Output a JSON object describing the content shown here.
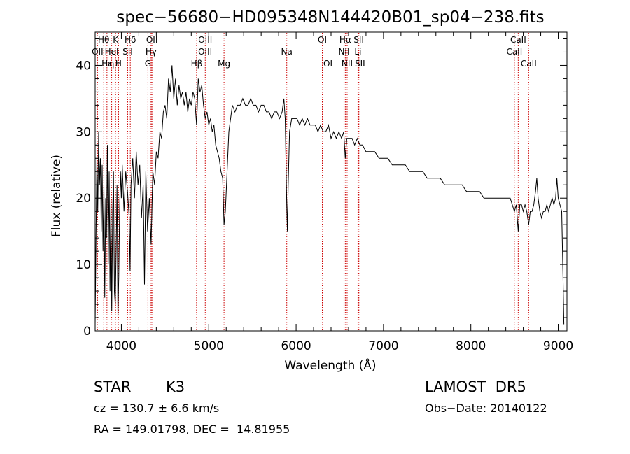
{
  "chart_data": {
    "type": "line",
    "title": "spec−56680−HD095348N144420B01_sp04−238.fits",
    "xlabel": "Wavelength (Å)",
    "ylabel": "Flux (relative)",
    "xlim": [
      3700,
      9100
    ],
    "ylim": [
      0,
      45
    ],
    "xticks": [
      4000,
      5000,
      6000,
      7000,
      8000,
      9000
    ],
    "yticks": [
      0,
      10,
      20,
      30,
      40
    ],
    "grid": false,
    "series": [
      {
        "points": [
          [
            3700,
            1
          ],
          [
            3710,
            14
          ],
          [
            3720,
            26
          ],
          [
            3730,
            18
          ],
          [
            3740,
            30
          ],
          [
            3750,
            22
          ],
          [
            3760,
            26
          ],
          [
            3770,
            15
          ],
          [
            3780,
            25
          ],
          [
            3790,
            12
          ],
          [
            3800,
            22
          ],
          [
            3810,
            5
          ],
          [
            3820,
            20
          ],
          [
            3830,
            14
          ],
          [
            3840,
            28
          ],
          [
            3850,
            10
          ],
          [
            3860,
            24
          ],
          [
            3870,
            6
          ],
          [
            3880,
            20
          ],
          [
            3890,
            3
          ],
          [
            3900,
            18
          ],
          [
            3910,
            24
          ],
          [
            3920,
            6
          ],
          [
            3930,
            4
          ],
          [
            3940,
            12
          ],
          [
            3950,
            22
          ],
          [
            3960,
            2
          ],
          [
            3970,
            8
          ],
          [
            3980,
            18
          ],
          [
            3990,
            24
          ],
          [
            4000,
            20
          ],
          [
            4010,
            25
          ],
          [
            4030,
            18
          ],
          [
            4050,
            24
          ],
          [
            4070,
            21
          ],
          [
            4090,
            17
          ],
          [
            4100,
            9
          ],
          [
            4110,
            22
          ],
          [
            4130,
            26
          ],
          [
            4150,
            20
          ],
          [
            4170,
            27
          ],
          [
            4190,
            22
          ],
          [
            4210,
            25
          ],
          [
            4230,
            17
          ],
          [
            4250,
            22
          ],
          [
            4265,
            7
          ],
          [
            4280,
            24
          ],
          [
            4300,
            15
          ],
          [
            4320,
            20
          ],
          [
            4340,
            13
          ],
          [
            4360,
            24
          ],
          [
            4380,
            22
          ],
          [
            4400,
            27
          ],
          [
            4420,
            26
          ],
          [
            4440,
            30
          ],
          [
            4460,
            29
          ],
          [
            4480,
            33
          ],
          [
            4500,
            34
          ],
          [
            4520,
            32
          ],
          [
            4540,
            38
          ],
          [
            4560,
            36
          ],
          [
            4580,
            40
          ],
          [
            4600,
            35
          ],
          [
            4620,
            38
          ],
          [
            4640,
            34
          ],
          [
            4660,
            37
          ],
          [
            4680,
            35
          ],
          [
            4700,
            36
          ],
          [
            4720,
            34
          ],
          [
            4740,
            36
          ],
          [
            4760,
            33
          ],
          [
            4780,
            35
          ],
          [
            4800,
            34
          ],
          [
            4820,
            36
          ],
          [
            4840,
            35
          ],
          [
            4861,
            31
          ],
          [
            4880,
            38
          ],
          [
            4900,
            36
          ],
          [
            4920,
            37
          ],
          [
            4940,
            34
          ],
          [
            4960,
            32
          ],
          [
            4980,
            33
          ],
          [
            5000,
            31
          ],
          [
            5020,
            32
          ],
          [
            5040,
            30
          ],
          [
            5060,
            31
          ],
          [
            5080,
            28
          ],
          [
            5100,
            27
          ],
          [
            5120,
            26
          ],
          [
            5140,
            24
          ],
          [
            5160,
            23
          ],
          [
            5175,
            16
          ],
          [
            5190,
            18
          ],
          [
            5210,
            24
          ],
          [
            5230,
            30
          ],
          [
            5250,
            32
          ],
          [
            5270,
            34
          ],
          [
            5300,
            33
          ],
          [
            5330,
            34
          ],
          [
            5360,
            34
          ],
          [
            5390,
            35
          ],
          [
            5420,
            34
          ],
          [
            5450,
            34
          ],
          [
            5480,
            35
          ],
          [
            5510,
            34
          ],
          [
            5540,
            34
          ],
          [
            5570,
            33
          ],
          [
            5600,
            34
          ],
          [
            5630,
            34
          ],
          [
            5660,
            33
          ],
          [
            5690,
            33
          ],
          [
            5720,
            32
          ],
          [
            5750,
            33
          ],
          [
            5780,
            33
          ],
          [
            5810,
            32
          ],
          [
            5840,
            33
          ],
          [
            5860,
            35
          ],
          [
            5875,
            32
          ],
          [
            5893,
            19
          ],
          [
            5900,
            15
          ],
          [
            5910,
            22
          ],
          [
            5925,
            30
          ],
          [
            5950,
            32
          ],
          [
            5980,
            32
          ],
          [
            6010,
            32
          ],
          [
            6040,
            31
          ],
          [
            6070,
            32
          ],
          [
            6100,
            31
          ],
          [
            6130,
            32
          ],
          [
            6160,
            31
          ],
          [
            6190,
            31
          ],
          [
            6220,
            31
          ],
          [
            6250,
            30
          ],
          [
            6280,
            31
          ],
          [
            6310,
            30
          ],
          [
            6340,
            30
          ],
          [
            6370,
            31
          ],
          [
            6400,
            29
          ],
          [
            6430,
            30
          ],
          [
            6460,
            29
          ],
          [
            6490,
            30
          ],
          [
            6520,
            29
          ],
          [
            6545,
            30
          ],
          [
            6563,
            26
          ],
          [
            6580,
            29
          ],
          [
            6610,
            29
          ],
          [
            6640,
            29
          ],
          [
            6670,
            28
          ],
          [
            6700,
            29
          ],
          [
            6730,
            28
          ],
          [
            6760,
            28
          ],
          [
            6800,
            27
          ],
          [
            6850,
            27
          ],
          [
            6900,
            27
          ],
          [
            6950,
            26
          ],
          [
            7000,
            26
          ],
          [
            7050,
            26
          ],
          [
            7100,
            25
          ],
          [
            7150,
            25
          ],
          [
            7200,
            25
          ],
          [
            7250,
            25
          ],
          [
            7300,
            24
          ],
          [
            7350,
            24
          ],
          [
            7400,
            24
          ],
          [
            7450,
            24
          ],
          [
            7500,
            23
          ],
          [
            7550,
            23
          ],
          [
            7600,
            23
          ],
          [
            7650,
            23
          ],
          [
            7700,
            22
          ],
          [
            7750,
            22
          ],
          [
            7800,
            22
          ],
          [
            7850,
            22
          ],
          [
            7900,
            22
          ],
          [
            7950,
            21
          ],
          [
            8000,
            21
          ],
          [
            8050,
            21
          ],
          [
            8100,
            21
          ],
          [
            8150,
            20
          ],
          [
            8200,
            20
          ],
          [
            8250,
            20
          ],
          [
            8300,
            20
          ],
          [
            8350,
            20
          ],
          [
            8400,
            20
          ],
          [
            8450,
            20
          ],
          [
            8498,
            18
          ],
          [
            8520,
            19
          ],
          [
            8542,
            15
          ],
          [
            8560,
            19
          ],
          [
            8580,
            19
          ],
          [
            8600,
            18
          ],
          [
            8620,
            19
          ],
          [
            8640,
            18
          ],
          [
            8662,
            16
          ],
          [
            8680,
            18
          ],
          [
            8700,
            18
          ],
          [
            8720,
            19
          ],
          [
            8740,
            21
          ],
          [
            8755,
            23
          ],
          [
            8770,
            20
          ],
          [
            8790,
            18
          ],
          [
            8810,
            17
          ],
          [
            8830,
            18
          ],
          [
            8850,
            18
          ],
          [
            8870,
            19
          ],
          [
            8890,
            18
          ],
          [
            8910,
            19
          ],
          [
            8930,
            20
          ],
          [
            8950,
            19
          ],
          [
            8970,
            20
          ],
          [
            8985,
            23
          ],
          [
            9000,
            20
          ],
          [
            9020,
            19
          ],
          [
            9040,
            18
          ],
          [
            9055,
            8
          ],
          [
            9065,
            1
          ]
        ]
      }
    ],
    "spectral_lines": [
      {
        "label": "Hθ",
        "wavelength": 3798,
        "row": 1
      },
      {
        "label": "K",
        "wavelength": 3934,
        "row": 1
      },
      {
        "label": "Hδ",
        "wavelength": 4102,
        "row": 1
      },
      {
        "label": "OII",
        "wavelength": 4350,
        "row": 1
      },
      {
        "label": "OIII",
        "wavelength": 4960,
        "row": 1
      },
      {
        "label": "OI",
        "wavelength": 6300,
        "row": 1
      },
      {
        "label": "Hα",
        "wavelength": 6563,
        "row": 1
      },
      {
        "label": "SII",
        "wavelength": 6717,
        "row": 1
      },
      {
        "label": "CaII",
        "wavelength": 8542,
        "row": 1
      },
      {
        "label": "OII",
        "wavelength": 3727,
        "row": 2
      },
      {
        "label": "HeI",
        "wavelength": 3889,
        "row": 2
      },
      {
        "label": "SII",
        "wavelength": 4072,
        "row": 2
      },
      {
        "label": "Hγ",
        "wavelength": 4340,
        "row": 2
      },
      {
        "label": "OIII",
        "wavelength": 4959,
        "row": 2
      },
      {
        "label": "NII",
        "wavelength": 6548,
        "row": 2
      },
      {
        "label": "Li",
        "wavelength": 6708,
        "row": 2
      },
      {
        "label": "CaII",
        "wavelength": 8498,
        "row": 2
      },
      {
        "label": "Hε",
        "wavelength": 3835,
        "row": 3
      },
      {
        "label": "η",
        "wavelength": 3889,
        "row": 3
      },
      {
        "label": "H",
        "wavelength": 3968,
        "row": 3
      },
      {
        "label": "G",
        "wavelength": 4304,
        "row": 3
      },
      {
        "label": "Hβ",
        "wavelength": 4861,
        "row": 3
      },
      {
        "label": "Mg",
        "wavelength": 5175,
        "row": 3
      },
      {
        "label": "Na",
        "wavelength": 5893,
        "row": 2
      },
      {
        "label": "OI",
        "wavelength": 6364,
        "row": 3
      },
      {
        "label": "NII",
        "wavelength": 6584,
        "row": 3
      },
      {
        "label": "SII",
        "wavelength": 6731,
        "row": 3
      },
      {
        "label": "CaII",
        "wavelength": 8662,
        "row": 3
      }
    ],
    "line_marker_color": "#cc0000",
    "series_color": "#000000"
  },
  "info": {
    "object_class": "STAR",
    "subclass": "K3",
    "survey": "LAMOST  DR5",
    "redshift": "cz = 130.7 ± 6.6 km/s",
    "obs_date": "Obs−Date: 20140122",
    "coords": "RA = 149.01798, DEC =  14.81955"
  }
}
